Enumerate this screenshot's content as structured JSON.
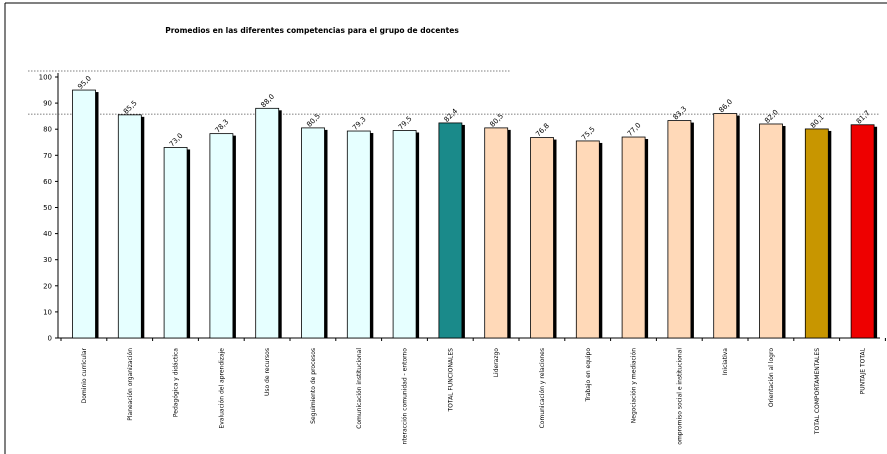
{
  "chart_data": {
    "type": "bar",
    "title": "Promedios  en las diferentes  competencias  para  el grupo de docentes",
    "xlabel": "",
    "ylabel": "",
    "ylim": [
      0,
      100
    ],
    "yticks": [
      0,
      10,
      20,
      30,
      40,
      50,
      60,
      70,
      80,
      90,
      100
    ],
    "grid": false,
    "reference_lines": [
      100,
      85
    ],
    "categories": [
      "Dominio curricular",
      "Planeación organización",
      "Pedagógica y didáctica",
      "Evaluación del aprendizaje",
      "Uso de recursos",
      "Seguimiento de procesos",
      "Comunicación institucional",
      "nteracción comunidad - entorno",
      "TOTAL FUNCIONALES",
      "Liderazgo",
      "Comunicación y relaciones",
      "Trabajo en equipo",
      "Negociación y mediación",
      "ompromiso social e institucional",
      "Iniciativa",
      "Orientación al logro",
      "TOTAL COMPORTAMENTALES",
      "PUNTAJE TOTAL"
    ],
    "values": [
      95.0,
      85.5,
      73.0,
      78.3,
      88.0,
      80.5,
      79.3,
      79.5,
      82.4,
      80.5,
      76.8,
      75.5,
      77.0,
      83.3,
      86.0,
      82.0,
      80.1,
      81.7
    ],
    "value_labels": [
      "95,0",
      "85,5",
      "73,0",
      "78,3",
      "88,0",
      "80,5",
      "79,3",
      "79,5",
      "82,4",
      "80,5",
      "76,8",
      "75,5",
      "77,0",
      "83,3",
      "86,0",
      "82,0",
      "80,1",
      "81,7"
    ],
    "colors": [
      "#e6ffff",
      "#e6ffff",
      "#e6ffff",
      "#e6ffff",
      "#e6ffff",
      "#e6ffff",
      "#e6ffff",
      "#e6ffff",
      "#1a8a8a",
      "#ffd9b8",
      "#ffd9b8",
      "#ffd9b8",
      "#ffd9b8",
      "#ffd9b8",
      "#ffd9b8",
      "#ffd9b8",
      "#c89600",
      "#ee0000"
    ]
  }
}
